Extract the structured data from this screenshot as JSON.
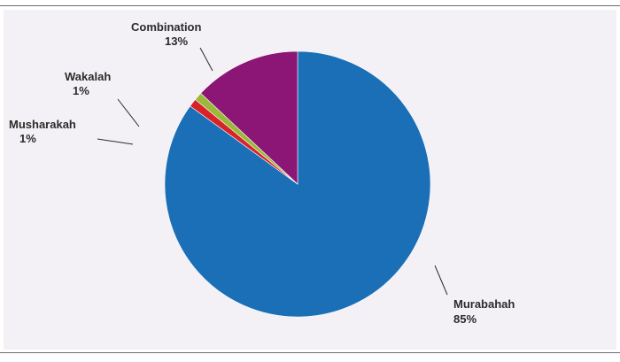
{
  "chart_data": {
    "type": "pie",
    "slices": [
      {
        "label": "Murabahah",
        "value": 85,
        "value_label": "85%",
        "color": "#1b6fb6"
      },
      {
        "label": "Musharakah",
        "value": 1,
        "value_label": "1%",
        "color": "#d8222a"
      },
      {
        "label": "Wakalah",
        "value": 1,
        "value_label": "1%",
        "color": "#9bb83b"
      },
      {
        "label": "Combination",
        "value": 13,
        "value_label": "13%",
        "color": "#8b1676"
      }
    ],
    "start": "top",
    "direction": "clockwise"
  }
}
